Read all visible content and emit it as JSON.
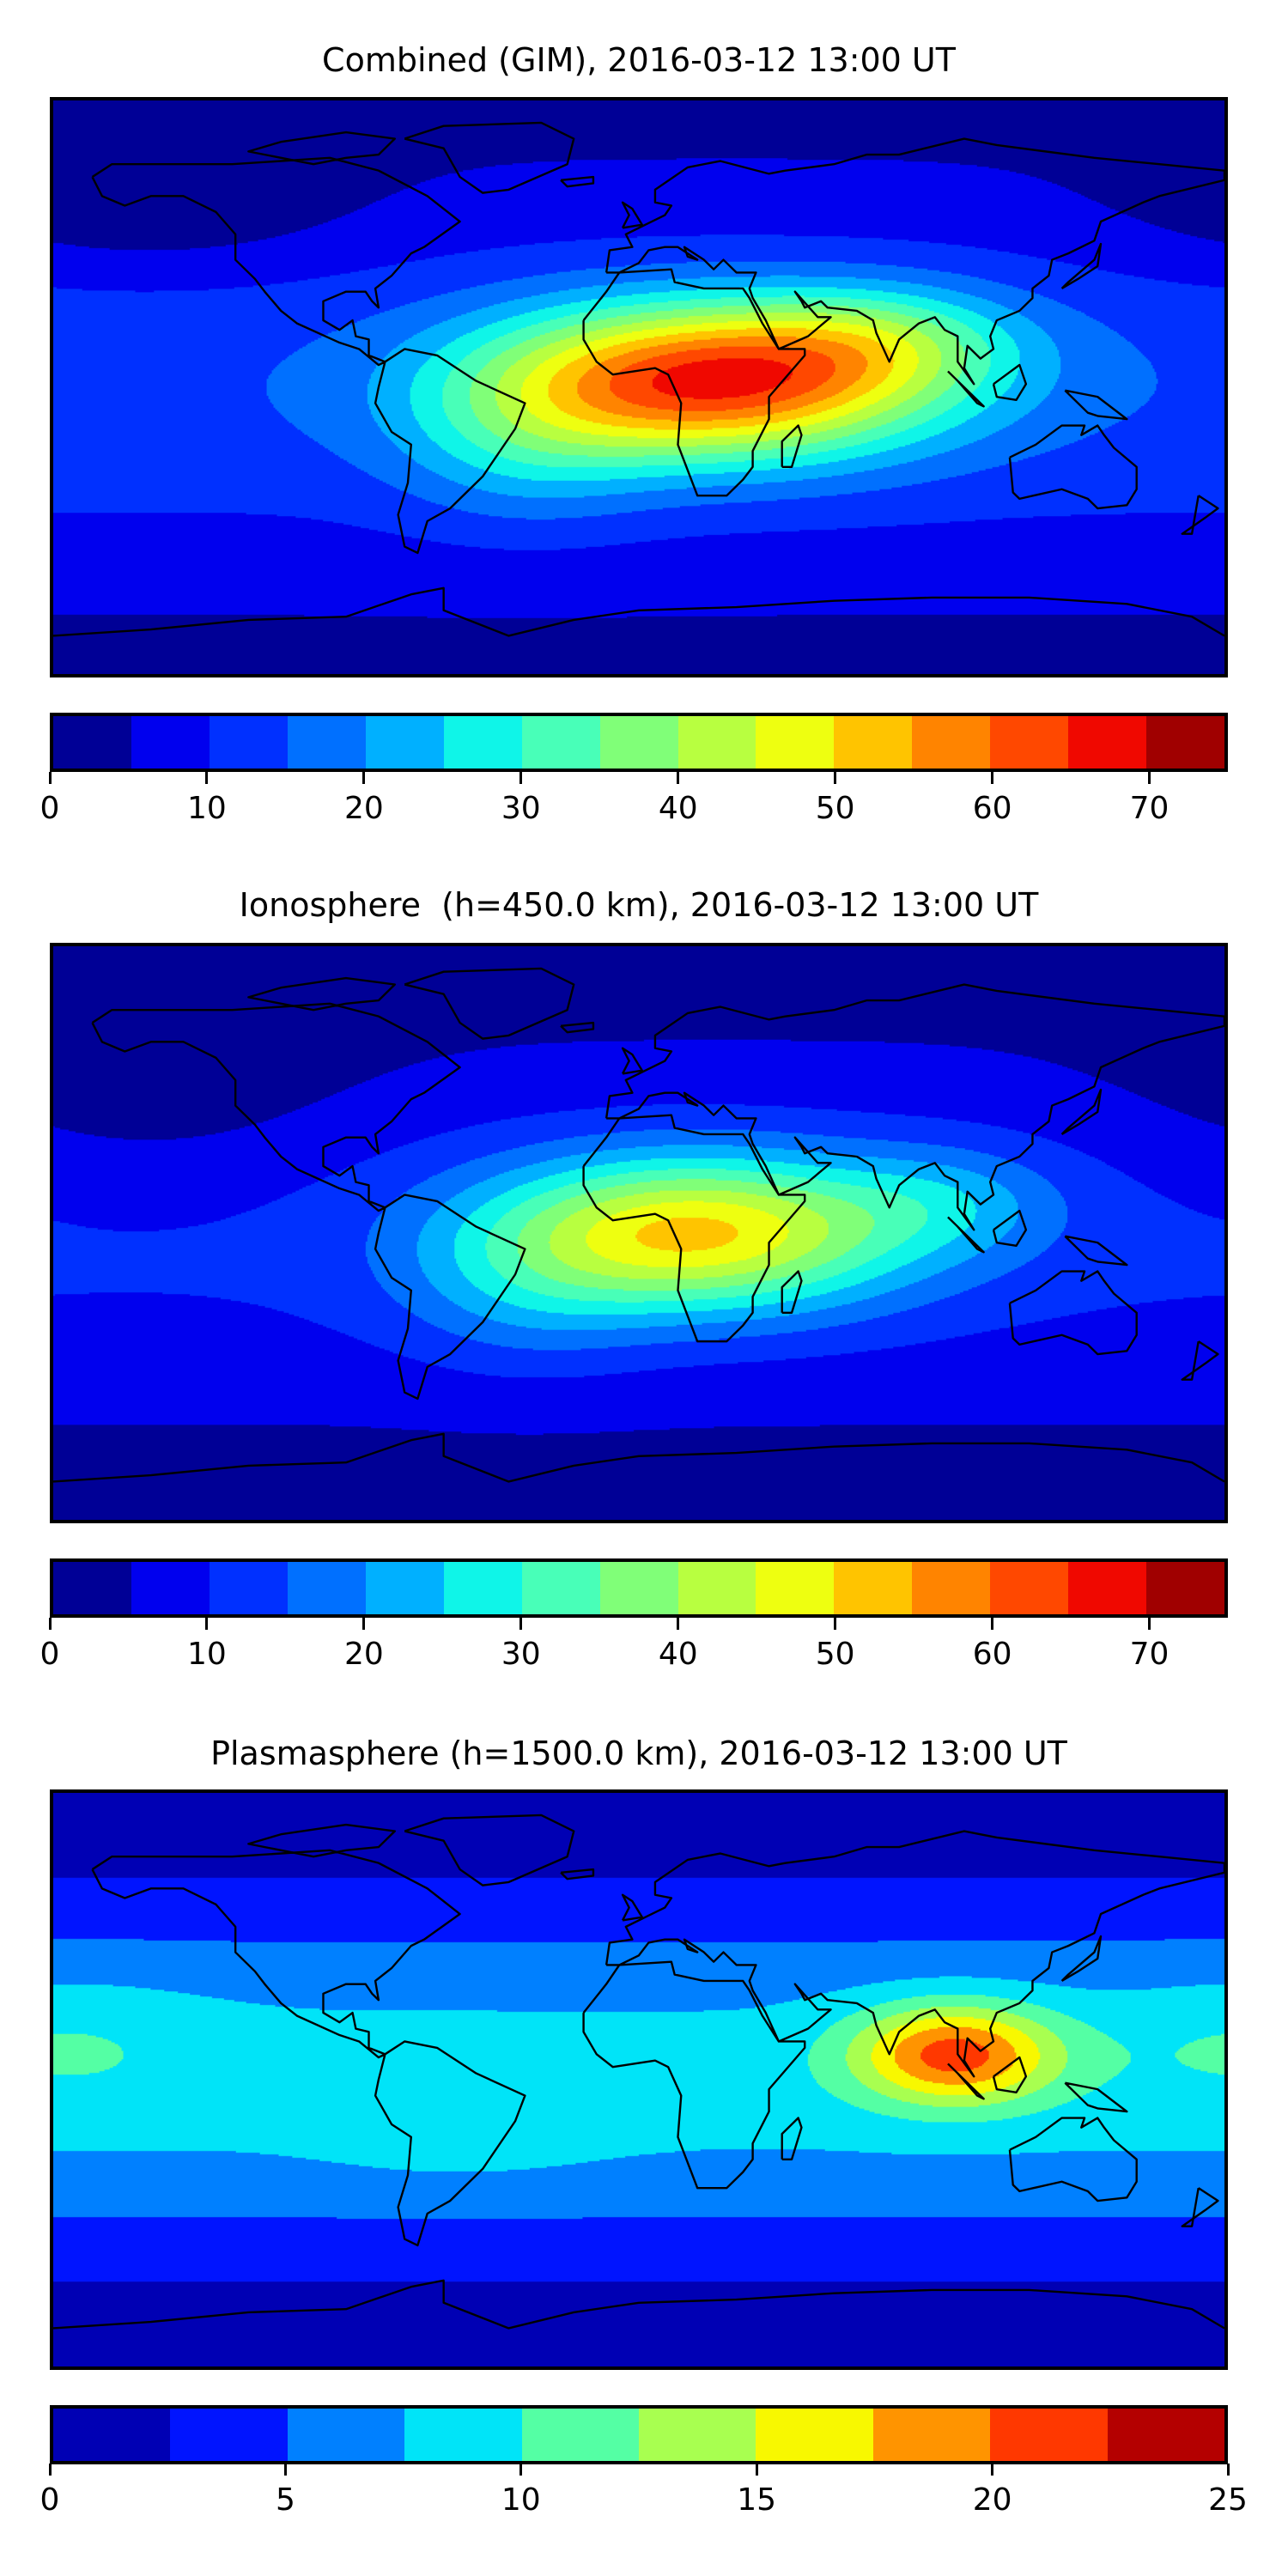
{
  "chart_data": [
    {
      "type": "heatmap",
      "title": "Combined (GIM), 2016-03-12 13:00 UT",
      "xlim": [
        -180,
        180
      ],
      "ylim": [
        -90,
        90
      ],
      "levels": [
        0,
        5,
        10,
        15,
        20,
        25,
        30,
        35,
        40,
        45,
        50,
        55,
        60,
        65,
        70,
        75
      ],
      "colors": [
        "#000096",
        "#0000ee",
        "#0030ff",
        "#0070ff",
        "#00b0ff",
        "#0ff5e8",
        "#48ffb8",
        "#80ff78",
        "#b8ff40",
        "#eeff10",
        "#ffc400",
        "#ff8400",
        "#ff4800",
        "#f00800",
        "#a00000"
      ],
      "colorbar_ticks": [
        "0",
        "10",
        "20",
        "30",
        "40",
        "50",
        "60",
        "70"
      ],
      "colorbar_tick_values": [
        0,
        10,
        20,
        30,
        40,
        50,
        60,
        70
      ],
      "background": {
        "equator": 14,
        "pole": 4
      },
      "features": [
        {
          "lon": 22,
          "lat": 2,
          "value": 52,
          "spread_lon": 48,
          "spread_lat": 17
        },
        {
          "lon": 75,
          "lat": 15,
          "value": 14,
          "spread_lon": 30,
          "spread_lat": 12
        },
        {
          "lon": -35,
          "lat": -18,
          "value": 10,
          "spread_lon": 28,
          "spread_lat": 18
        },
        {
          "lon": -150,
          "lat": 55,
          "value": -6,
          "spread_lon": 45,
          "spread_lat": 15
        }
      ]
    },
    {
      "type": "heatmap",
      "title": "Ionosphere  (h=450.0 km), 2016-03-12 13:00 UT",
      "xlim": [
        -180,
        180
      ],
      "ylim": [
        -90,
        90
      ],
      "levels": [
        0,
        5,
        10,
        15,
        20,
        25,
        30,
        35,
        40,
        45,
        50,
        55,
        60,
        65,
        70,
        75
      ],
      "colors": [
        "#000096",
        "#0000ee",
        "#0030ff",
        "#0070ff",
        "#00b0ff",
        "#0ff5e8",
        "#48ffb8",
        "#80ff78",
        "#b8ff40",
        "#eeff10",
        "#ffc400",
        "#ff8400",
        "#ff4800",
        "#f00800",
        "#a00000"
      ],
      "colorbar_ticks": [
        "0",
        "10",
        "20",
        "30",
        "40",
        "50",
        "60",
        "70"
      ],
      "colorbar_tick_values": [
        0,
        10,
        20,
        30,
        40,
        50,
        60,
        70
      ],
      "background": {
        "equator": 11,
        "pole": 3
      },
      "features": [
        {
          "lon": 18,
          "lat": 0,
          "value": 40,
          "spread_lon": 45,
          "spread_lat": 17
        },
        {
          "lon": 95,
          "lat": 10,
          "value": 9,
          "spread_lon": 25,
          "spread_lat": 12
        },
        {
          "lon": -35,
          "lat": -18,
          "value": 8,
          "spread_lon": 28,
          "spread_lat": 18
        },
        {
          "lon": -150,
          "lat": 45,
          "value": -5,
          "spread_lon": 45,
          "spread_lat": 25
        }
      ]
    },
    {
      "type": "heatmap",
      "title": "Plasmasphere (h=1500.0 km), 2016-03-12 13:00 UT",
      "xlim": [
        -180,
        180
      ],
      "ylim": [
        -90,
        90
      ],
      "levels": [
        0,
        2.5,
        5,
        7.5,
        10,
        12.5,
        15,
        17.5,
        20,
        22.5,
        25
      ],
      "colors": [
        "#0000b4",
        "#0014ff",
        "#0080ff",
        "#00e4f8",
        "#54ffa4",
        "#a8ff50",
        "#f8f800",
        "#ff9400",
        "#ff3800",
        "#b40000"
      ],
      "colorbar_ticks": [
        "0",
        "5",
        "10",
        "15",
        "20",
        "25"
      ],
      "colorbar_tick_values": [
        0,
        5,
        10,
        15,
        20,
        25
      ],
      "background": {
        "equator": 8.5,
        "pole": 1
      },
      "features": [
        {
          "lon": 97,
          "lat": 8,
          "value": 13,
          "spread_lon": 22,
          "spread_lat": 11
        },
        {
          "lon": -175,
          "lat": 12,
          "value": 2,
          "spread_lon": 30,
          "spread_lat": 14
        },
        {
          "lon": -55,
          "lat": -15,
          "value": 1.5,
          "spread_lon": 30,
          "spread_lat": 12
        }
      ]
    }
  ]
}
